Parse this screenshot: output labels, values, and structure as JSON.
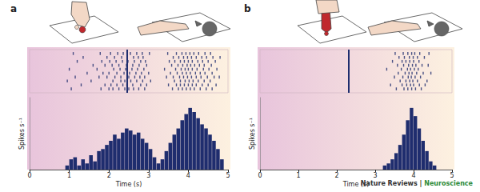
{
  "chart_data": [
    {
      "type": "raster",
      "title": "a",
      "color": "#1f2d6e",
      "xlim": [
        0,
        5
      ],
      "ylim": [
        0,
        11
      ],
      "tick_labels": false,
      "event_time": 2.45,
      "trials": [
        [
          1.05,
          1.8,
          2.0,
          2.1,
          2.25,
          2.4,
          2.5,
          2.62,
          2.75,
          2.9,
          3.6,
          3.75,
          3.85,
          3.95,
          4.05,
          4.15,
          4.3,
          4.45,
          4.6
        ],
        [
          1.3,
          1.9,
          2.05,
          2.2,
          2.35,
          2.45,
          2.6,
          2.8,
          2.95,
          3.5,
          3.7,
          3.8,
          3.9,
          4.0,
          4.1,
          4.2,
          4.35,
          4.5,
          4.7
        ],
        [
          0.95,
          1.55,
          2.1,
          2.3,
          2.4,
          2.55,
          2.7,
          2.85,
          3.05,
          3.65,
          3.8,
          3.92,
          4.02,
          4.12,
          4.25,
          4.4,
          4.55
        ],
        [
          1.15,
          1.75,
          1.95,
          2.15,
          2.3,
          2.5,
          2.65,
          2.78,
          2.9,
          3.45,
          3.62,
          3.78,
          3.88,
          3.98,
          4.08,
          4.2,
          4.32,
          4.48,
          4.65,
          4.78
        ],
        [
          1.45,
          1.85,
          2.0,
          2.2,
          2.38,
          2.52,
          2.68,
          2.82,
          3.0,
          3.55,
          3.72,
          3.85,
          3.95,
          4.05,
          4.18,
          4.3,
          4.42,
          4.6
        ],
        [
          1.0,
          1.7,
          2.12,
          2.28,
          2.42,
          2.58,
          2.72,
          2.88,
          3.4,
          3.68,
          3.82,
          3.92,
          4.0,
          4.1,
          4.22,
          4.38,
          4.52,
          4.72
        ],
        [
          1.6,
          1.9,
          2.08,
          2.25,
          2.44,
          2.6,
          2.76,
          2.95,
          3.58,
          3.74,
          3.86,
          3.97,
          4.06,
          4.16,
          4.28,
          4.4,
          4.58
        ],
        [
          1.2,
          1.82,
          2.02,
          2.18,
          2.34,
          2.48,
          2.64,
          2.8,
          2.92,
          3.52,
          3.66,
          3.8,
          3.9,
          4.0,
          4.1,
          4.24,
          4.36,
          4.5,
          4.68
        ],
        [
          1.35,
          1.95,
          2.14,
          2.32,
          2.46,
          2.62,
          2.74,
          2.86,
          3.62,
          3.76,
          3.88,
          3.98,
          4.08,
          4.2,
          4.34,
          4.46,
          4.62,
          4.8
        ],
        [
          1.1,
          1.78,
          2.04,
          2.22,
          2.36,
          2.54,
          2.7,
          2.84,
          3.02,
          3.48,
          3.7,
          3.84,
          3.94,
          4.04,
          4.14,
          4.26,
          4.42,
          4.56
        ]
      ]
    },
    {
      "type": "histogram",
      "color": "#1f2d6e",
      "xlabel": "Time (s)",
      "ylabel": "Spikes s⁻¹",
      "xlim": [
        0,
        5
      ],
      "xticks": [
        0,
        1,
        2,
        3,
        4,
        5
      ],
      "ylim": [
        0,
        70
      ],
      "tick_labels": "x",
      "bins": [
        0,
        0.1,
        0.2,
        0.3,
        0.4,
        0.5,
        0.6,
        0.7,
        0.8,
        0.9,
        1,
        1.1,
        1.2,
        1.3,
        1.4,
        1.5,
        1.6,
        1.7,
        1.8,
        1.9,
        2,
        2.1,
        2.2,
        2.3,
        2.4,
        2.5,
        2.6,
        2.7,
        2.8,
        2.9,
        3,
        3.1,
        3.2,
        3.3,
        3.4,
        3.5,
        3.6,
        3.7,
        3.8,
        3.9,
        4,
        4.1,
        4.2,
        4.3,
        4.4,
        4.5,
        4.6,
        4.7,
        4.8,
        4.9,
        5
      ],
      "values": [
        0,
        0,
        0,
        0,
        0,
        0,
        0,
        0,
        0,
        4,
        10,
        12,
        4,
        10,
        6,
        14,
        8,
        18,
        20,
        24,
        28,
        34,
        30,
        36,
        40,
        38,
        34,
        36,
        30,
        26,
        20,
        12,
        6,
        10,
        18,
        26,
        34,
        40,
        48,
        54,
        60,
        56,
        50,
        44,
        40,
        34,
        28,
        20,
        10,
        0
      ]
    },
    {
      "type": "raster",
      "title": "b",
      "color": "#1f2d6e",
      "xlim": [
        0,
        5
      ],
      "ylim": [
        0,
        11
      ],
      "tick_labels": false,
      "event_time": 2.3,
      "trials": [
        [
          3.55,
          3.75,
          3.85,
          3.95,
          4.05,
          4.2
        ],
        [
          3.4,
          3.7,
          3.82,
          3.92,
          4.0,
          4.15,
          4.3
        ],
        [
          3.65,
          3.8,
          3.9,
          3.98,
          4.1,
          4.35
        ],
        [
          3.5,
          3.72,
          3.86,
          3.94,
          4.04,
          4.18
        ],
        [
          3.6,
          3.78,
          3.88,
          3.96,
          4.08,
          4.25,
          4.45
        ],
        [
          3.3,
          3.68,
          3.84,
          3.92,
          4.02,
          4.12
        ],
        [
          3.58,
          3.74,
          3.87,
          3.97,
          4.06,
          4.22,
          4.38
        ],
        [
          3.45,
          3.7,
          3.8,
          3.9,
          4.0,
          4.14
        ],
        [
          3.62,
          3.76,
          3.89,
          3.99,
          4.1,
          4.28
        ],
        [
          3.52,
          3.73,
          3.85,
          3.95,
          4.03,
          4.16,
          4.4
        ]
      ]
    },
    {
      "type": "histogram",
      "color": "#1f2d6e",
      "xlabel": "Time (s)",
      "ylabel": "Spikes s⁻¹",
      "xlim": [
        0,
        5
      ],
      "xticks": [
        0,
        1,
        2,
        3,
        4,
        5
      ],
      "ylim": [
        0,
        70
      ],
      "tick_labels": "x",
      "bins": [
        0,
        0.1,
        0.2,
        0.3,
        0.4,
        0.5,
        0.6,
        0.7,
        0.8,
        0.9,
        1,
        1.1,
        1.2,
        1.3,
        1.4,
        1.5,
        1.6,
        1.7,
        1.8,
        1.9,
        2,
        2.1,
        2.2,
        2.3,
        2.4,
        2.5,
        2.6,
        2.7,
        2.8,
        2.9,
        3,
        3.1,
        3.2,
        3.3,
        3.4,
        3.5,
        3.6,
        3.7,
        3.8,
        3.9,
        4,
        4.1,
        4.2,
        4.3,
        4.4,
        4.5,
        4.6,
        4.7,
        4.8,
        4.9,
        5
      ],
      "values": [
        0,
        0,
        0,
        0,
        0,
        0,
        0,
        0,
        0,
        0,
        0,
        0,
        0,
        0,
        0,
        0,
        0,
        0,
        0,
        0,
        0,
        0,
        0,
        0,
        0,
        0,
        0,
        0,
        0,
        0,
        0,
        0,
        4,
        6,
        10,
        16,
        24,
        34,
        48,
        60,
        52,
        40,
        28,
        18,
        8,
        4,
        0,
        0,
        0,
        0
      ]
    }
  ],
  "credit": [
    "Nature Reviews |",
    "Neuroscience"
  ]
}
